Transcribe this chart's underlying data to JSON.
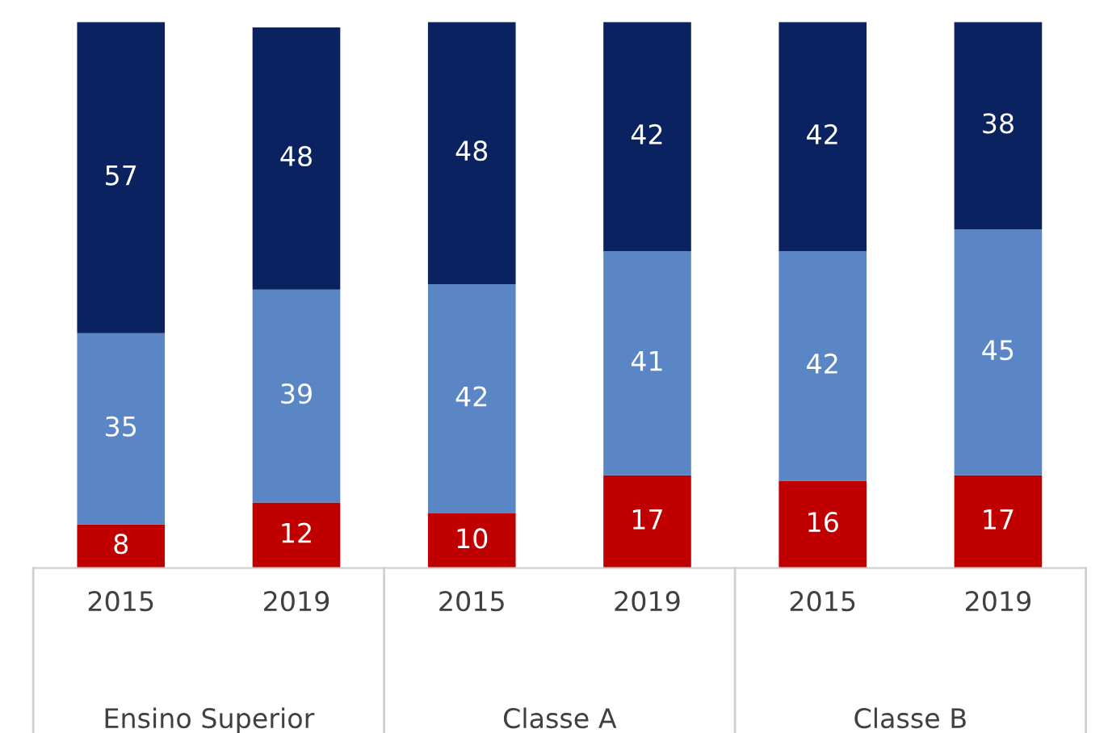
{
  "chart_data": {
    "type": "bar",
    "stacked": true,
    "data_labels": true,
    "legend": false,
    "grid": false,
    "categories": [
      "2015",
      "2019",
      "2015",
      "2019",
      "2015",
      "2019"
    ],
    "series": [
      {
        "color": "#c00000",
        "values": [
          8,
          12,
          10,
          17,
          16,
          17
        ]
      },
      {
        "color": "#5a86c6",
        "values": [
          35,
          39,
          42,
          41,
          42,
          45
        ]
      },
      {
        "color": "#0b2260",
        "values": [
          57,
          48,
          48,
          42,
          42,
          38
        ]
      }
    ],
    "ylim": [
      0,
      100
    ],
    "tick_labels": "x",
    "annotations": [
      "Ensino Superior",
      "Classe A",
      "Classe B"
    ]
  }
}
